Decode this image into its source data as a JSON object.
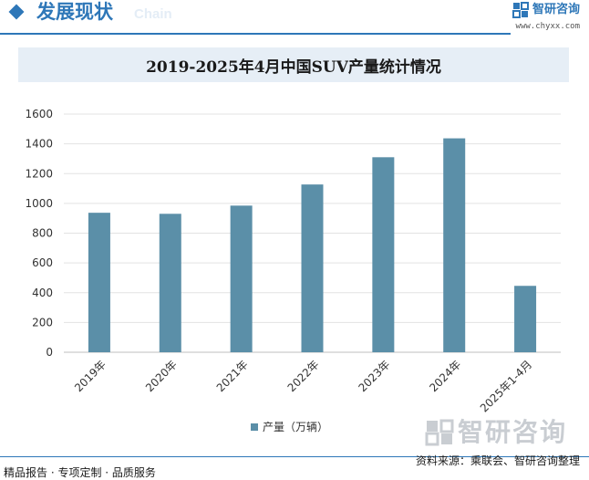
{
  "header": {
    "section_title": "发展现状",
    "section_subtitle": "Chain",
    "brand_name": "智研咨询",
    "brand_url": "www.chyxx.com",
    "accent_color": "#2e77b8"
  },
  "chart_data": {
    "type": "bar",
    "title": "2019-2025年4月中国SUV产量统计情况",
    "categories": [
      "2019年",
      "2020年",
      "2021年",
      "2022年",
      "2023年",
      "2024年",
      "2025年1-4月"
    ],
    "series": [
      {
        "name": "产量（万辆）",
        "values": [
          937,
          930,
          985,
          1127,
          1310,
          1437,
          446
        ],
        "color": "#5b8fa8"
      }
    ],
    "xlabel": "",
    "ylabel": "",
    "ylim": [
      0,
      1600
    ],
    "yticks": [
      0,
      200,
      400,
      600,
      800,
      1000,
      1200,
      1400,
      1600
    ],
    "grid": true,
    "legend_position": "bottom"
  },
  "watermark": {
    "text": "智研咨询"
  },
  "footer": {
    "source": "资料来源：乘联会、智研咨询整理",
    "tagline": "精品报告 · 专项定制 · 品质服务"
  }
}
